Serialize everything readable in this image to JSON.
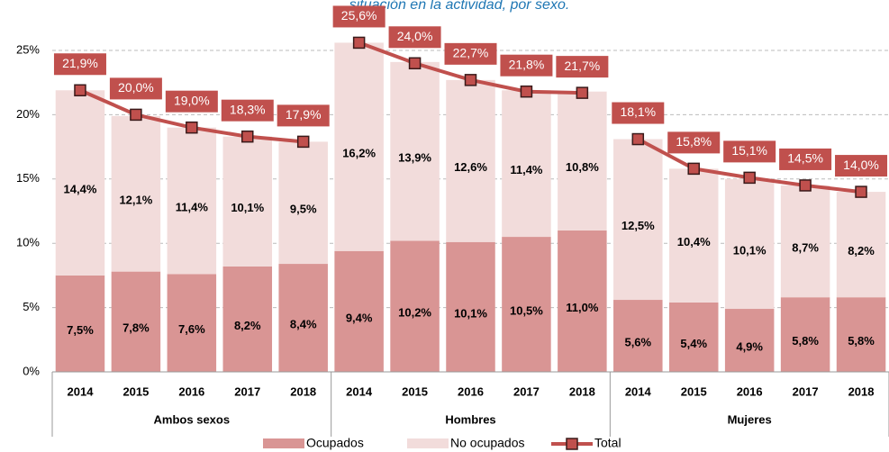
{
  "chart_data": {
    "type": "bar-line",
    "title": "situación en la actividad, por sexo.",
    "categories": [
      "2014",
      "2015",
      "2016",
      "2017",
      "2018",
      "2014",
      "2015",
      "2016",
      "2017",
      "2018",
      "2014",
      "2015",
      "2016",
      "2017",
      "2018"
    ],
    "groups": [
      "Ambos sexos",
      "Hombres",
      "Mujeres"
    ],
    "ylim": [
      0,
      25
    ],
    "yticks": [
      {
        "value": 0,
        "label": "0%"
      },
      {
        "value": 5,
        "label": "5%"
      },
      {
        "value": 10,
        "label": "10%"
      },
      {
        "value": 15,
        "label": "15%"
      },
      {
        "value": 20,
        "label": "20%"
      },
      {
        "value": 25,
        "label": "25%"
      }
    ],
    "grid": true,
    "series": [
      {
        "name": "Ocupados",
        "type": "bar",
        "color": "#d99594",
        "values": [
          7.5,
          7.8,
          7.6,
          8.2,
          8.4,
          9.4,
          10.2,
          10.1,
          10.5,
          11.0,
          5.6,
          5.4,
          4.9,
          5.8,
          5.8
        ],
        "value_labels": [
          "7,5%",
          "7,8%",
          "7,6%",
          "8,2%",
          "8,4%",
          "9,4%",
          "10,2%",
          "10,1%",
          "10,5%",
          "11,0%",
          "5,6%",
          "5,4%",
          "4,9%",
          "5,8%",
          "5,8%"
        ]
      },
      {
        "name": "No ocupados",
        "type": "bar",
        "color": "#f2dcdb",
        "values": [
          14.4,
          12.1,
          11.4,
          10.1,
          9.5,
          16.2,
          13.9,
          12.6,
          11.4,
          10.8,
          12.5,
          10.4,
          10.1,
          8.7,
          8.2
        ],
        "value_labels": [
          "14,4%",
          "12,1%",
          "11,4%",
          "10,1%",
          "9,5%",
          "16,2%",
          "13,9%",
          "12,6%",
          "11,4%",
          "10,8%",
          "12,5%",
          "10,4%",
          "10,1%",
          "8,7%",
          "8,2%"
        ]
      },
      {
        "name": "Total",
        "type": "line",
        "color": "#c0504d",
        "values": [
          21.9,
          20.0,
          19.0,
          18.3,
          17.9,
          25.6,
          24.0,
          22.7,
          21.8,
          21.7,
          18.1,
          15.8,
          15.1,
          14.5,
          14.0
        ],
        "value_labels": [
          "21,9%",
          "20,0%",
          "19,0%",
          "18,3%",
          "17,9%",
          "25,6%",
          "24,0%",
          "22,7%",
          "21,8%",
          "21,7%",
          "18,1%",
          "15,8%",
          "15,1%",
          "14,5%",
          "14,0%"
        ]
      }
    ]
  }
}
